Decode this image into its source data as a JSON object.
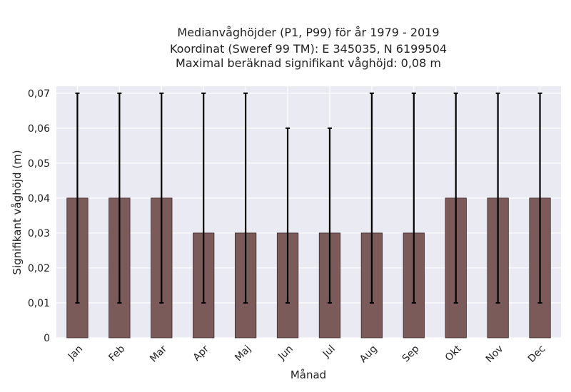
{
  "chart_data": {
    "type": "bar",
    "title_lines": [
      "Medianvåghöjder (P1, P99) för år 1979 - 2019",
      "Koordinat (Sweref 99 TM): E 345035, N 6199504",
      "Maximal beräknad signifikant våghöjd: 0,08 m"
    ],
    "xlabel": "Månad",
    "ylabel": "Signifikant våghöjd (m)",
    "categories": [
      "Jan",
      "Feb",
      "Mar",
      "Apr",
      "Maj",
      "Jun",
      "Jul",
      "Aug",
      "Sep",
      "Okt",
      "Nov",
      "Dec"
    ],
    "values": [
      0.04,
      0.04,
      0.04,
      0.03,
      0.03,
      0.03,
      0.03,
      0.03,
      0.03,
      0.04,
      0.04,
      0.04
    ],
    "error_low": [
      0.01,
      0.01,
      0.01,
      0.01,
      0.01,
      0.01,
      0.01,
      0.01,
      0.01,
      0.01,
      0.01,
      0.01
    ],
    "error_high": [
      0.07,
      0.07,
      0.07,
      0.07,
      0.07,
      0.06,
      0.06,
      0.07,
      0.07,
      0.07,
      0.07,
      0.07
    ],
    "ylim": [
      0,
      0.072
    ],
    "yticks": [
      0,
      0.01,
      0.02,
      0.03,
      0.04,
      0.05,
      0.06,
      0.07
    ],
    "ytick_labels": [
      "0",
      "0,01",
      "0,02",
      "0,03",
      "0,04",
      "0,05",
      "0,06",
      "0,07"
    ],
    "grid": true,
    "colors": {
      "bar": "#7b5a5a",
      "bar_edge": "#3a2a2a",
      "error": "#000000",
      "plot_bg": "#eaeaf2",
      "grid": "#ffffff"
    }
  }
}
